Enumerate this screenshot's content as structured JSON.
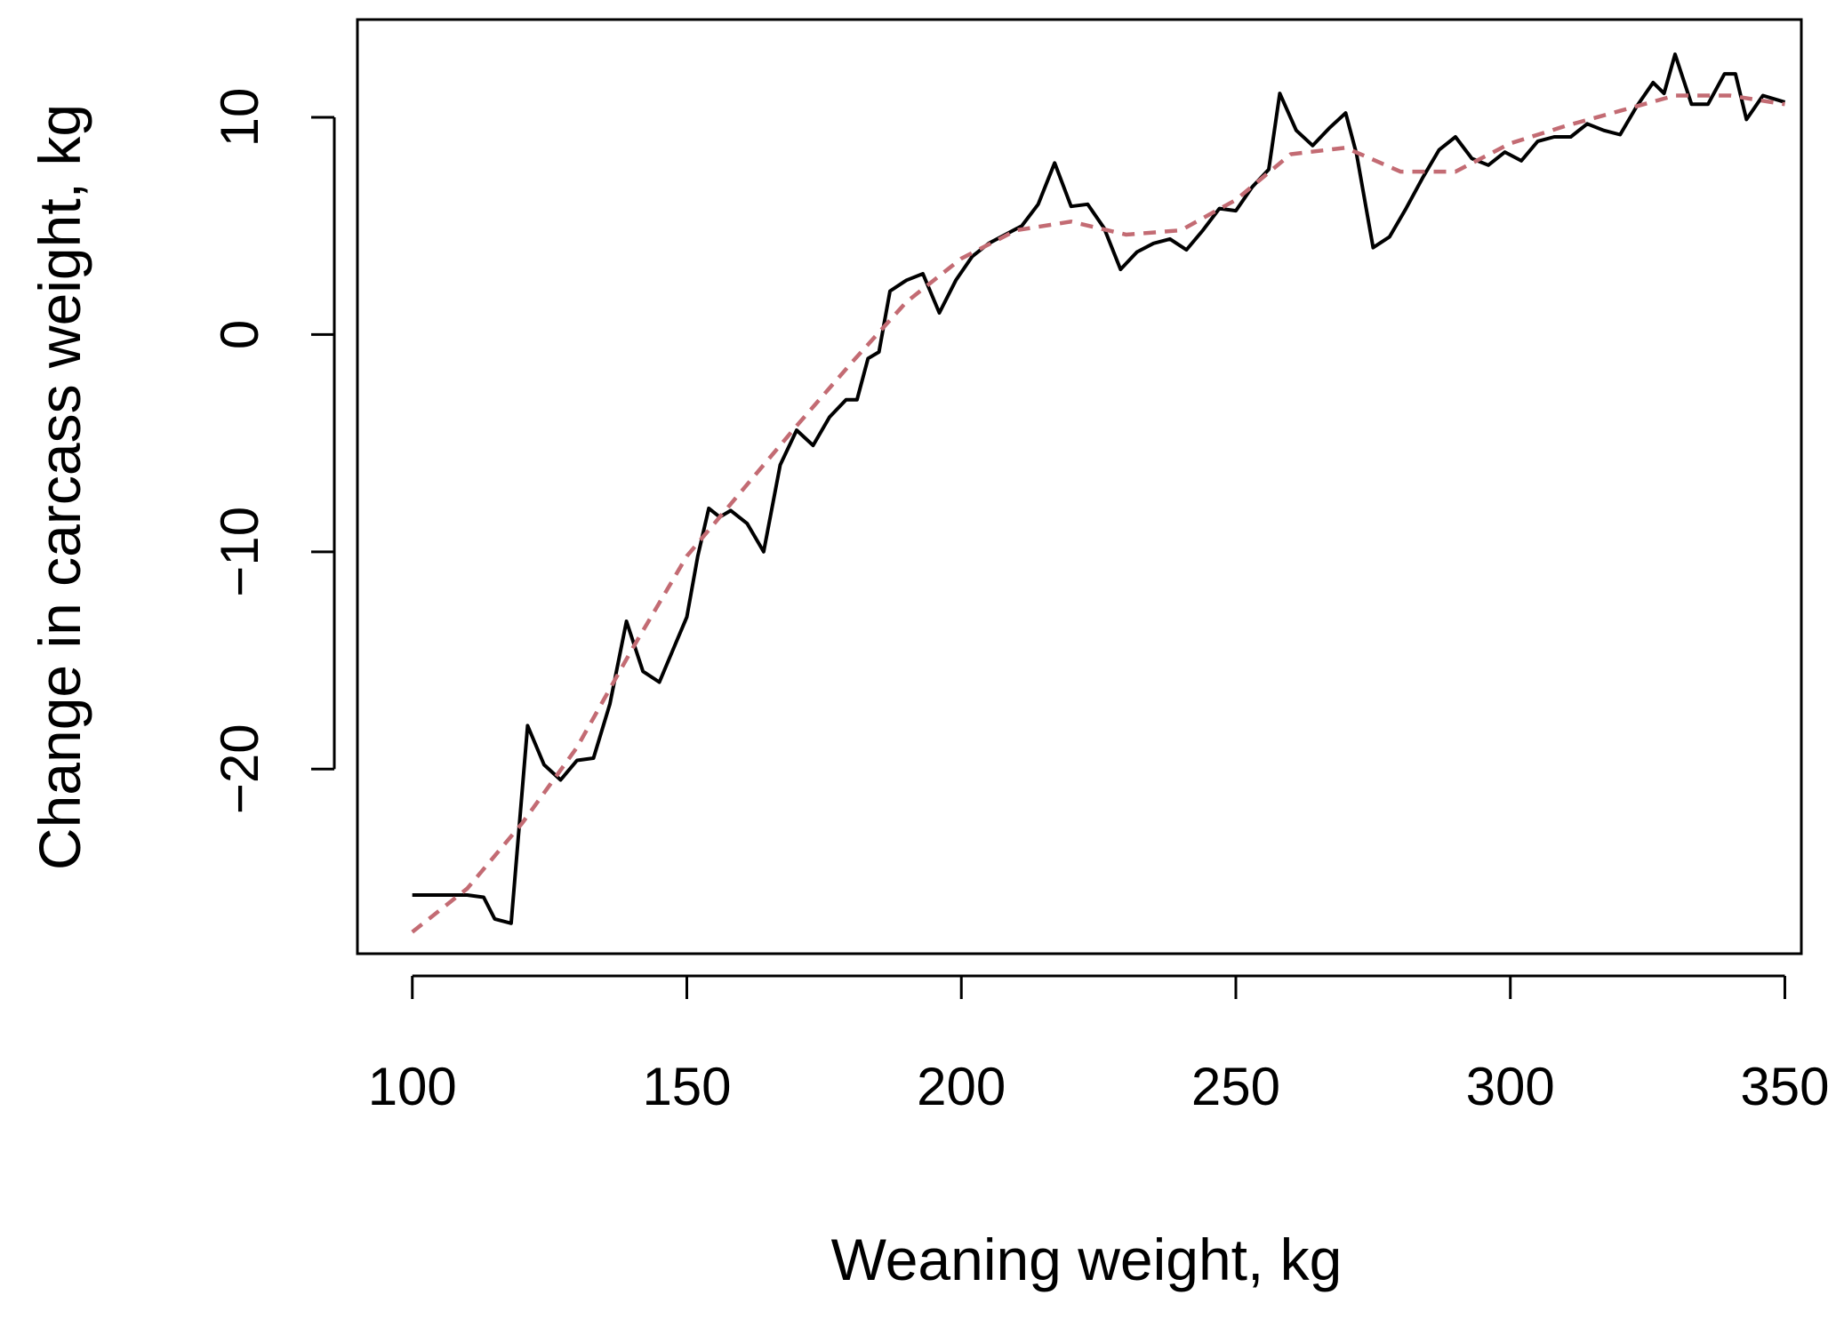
{
  "chart_data": {
    "type": "line",
    "xlabel": "Weaning weight, kg",
    "ylabel": "Change in carcass weight, kg",
    "xlim": [
      90,
      353
    ],
    "ylim": [
      -28.5,
      14.5
    ],
    "x_ticks": [
      100,
      150,
      200,
      250,
      300,
      350
    ],
    "y_ticks": [
      -20,
      -10,
      0,
      10
    ],
    "grid": false,
    "legend": "none",
    "series": [
      {
        "style": "solid",
        "color": "#000000",
        "x": [
          100,
          105,
          110,
          113,
          115,
          118,
          121,
          124,
          127,
          130,
          133,
          136,
          139,
          142,
          145,
          148,
          150,
          152,
          154,
          156,
          158,
          161,
          164,
          167,
          170,
          173,
          176,
          179,
          181,
          183,
          185,
          187,
          190,
          193,
          196,
          199,
          202,
          205,
          208,
          211,
          214,
          217,
          220,
          223,
          226,
          229,
          232,
          235,
          238,
          241,
          244,
          247,
          250,
          253,
          256,
          258,
          261,
          264,
          267,
          270,
          272,
          275,
          278,
          281,
          284,
          287,
          290,
          293,
          296,
          299,
          302,
          305,
          308,
          311,
          314,
          317,
          320,
          323,
          326,
          328,
          330,
          333,
          336,
          339,
          341,
          343,
          346,
          350
        ],
        "y": [
          -25.8,
          -25.8,
          -25.8,
          -25.9,
          -26.9,
          -27.1,
          -18.0,
          -19.8,
          -20.5,
          -19.6,
          -19.5,
          -17.0,
          -13.2,
          -15.5,
          -16.0,
          -14.2,
          -13.0,
          -10.2,
          -8.0,
          -8.4,
          -8.1,
          -8.7,
          -10.0,
          -6.0,
          -4.4,
          -5.1,
          -3.8,
          -3.0,
          -3.0,
          -1.1,
          -0.8,
          2.0,
          2.5,
          2.8,
          1.0,
          2.5,
          3.6,
          4.2,
          4.6,
          5.0,
          6.0,
          7.9,
          5.9,
          6.0,
          4.9,
          3.0,
          3.8,
          4.2,
          4.4,
          3.9,
          4.8,
          5.8,
          5.7,
          6.8,
          7.6,
          11.1,
          9.4,
          8.7,
          9.5,
          10.2,
          8.3,
          4.0,
          4.5,
          5.8,
          7.2,
          8.5,
          9.1,
          8.1,
          7.8,
          8.4,
          8.0,
          8.9,
          9.1,
          9.1,
          9.7,
          9.4,
          9.2,
          10.5,
          11.6,
          11.1,
          12.9,
          10.6,
          10.6,
          12.0,
          12.0,
          9.9,
          11.0,
          10.7
        ]
      },
      {
        "style": "dashed",
        "color": "#c36b73",
        "x": [
          100,
          110,
          120,
          130,
          140,
          150,
          160,
          170,
          180,
          190,
          200,
          210,
          220,
          230,
          240,
          250,
          260,
          270,
          280,
          290,
          300,
          310,
          320,
          330,
          340,
          350
        ],
        "y": [
          -27.5,
          -25.5,
          -22.5,
          -19.0,
          -14.5,
          -10.2,
          -7.2,
          -4.2,
          -1.3,
          1.5,
          3.5,
          4.8,
          5.2,
          4.6,
          4.8,
          6.2,
          8.3,
          8.6,
          7.5,
          7.5,
          8.8,
          9.6,
          10.3,
          11.0,
          11.0,
          10.6
        ]
      }
    ]
  }
}
